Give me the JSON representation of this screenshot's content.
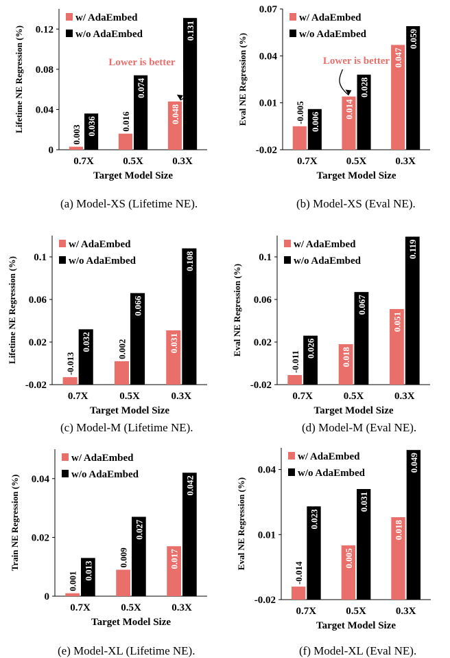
{
  "colors": {
    "with": "#e96f6a",
    "without": "#000000",
    "annotation": "#e96f6a"
  },
  "chart_data": [
    {
      "type": "bar",
      "caption": "(a)  Model-XS (Lifetime NE).",
      "xlabel": "Target Model Size",
      "ylabel": "Lifetime NE Regression (%)",
      "categories": [
        "0.7X",
        "0.5X",
        "0.3X"
      ],
      "ylim": [
        0,
        0.14
      ],
      "yticks": [
        "0",
        "0.04",
        "0.08",
        "0.12"
      ],
      "ytick_values": [
        0,
        0.04,
        0.08,
        0.12
      ],
      "legend": "top-left",
      "annotation": "Lower is better",
      "series": [
        {
          "name": "w/ AdaEmbed",
          "values": [
            0.003,
            0.016,
            0.048
          ],
          "labels": [
            "0.003",
            "0.016",
            "0.048"
          ]
        },
        {
          "name": "w/o AdaEmbed",
          "values": [
            0.036,
            0.074,
            0.131
          ],
          "labels": [
            "0.036",
            "0.074",
            "0.131"
          ]
        }
      ]
    },
    {
      "type": "bar",
      "caption": "(b)  Model-XS (Eval NE).",
      "xlabel": "Target Model Size",
      "ylabel": "Eval NE Regression (%)",
      "categories": [
        "0.7X",
        "0.5X",
        "0.3X"
      ],
      "ylim": [
        -0.02,
        0.07
      ],
      "yticks": [
        "-0.02",
        "0.01",
        "0.04",
        "0.07"
      ],
      "ytick_values": [
        -0.02,
        0.01,
        0.04,
        0.07
      ],
      "legend": "top-left",
      "annotation": "Lower is better",
      "series": [
        {
          "name": "w/ AdaEmbed",
          "values": [
            -0.005,
            0.014,
            0.047
          ],
          "labels": [
            "-0.005",
            "0.014",
            "0.047"
          ]
        },
        {
          "name": "w/o AdaEmbed",
          "values": [
            0.006,
            0.028,
            0.059
          ],
          "labels": [
            "0.006",
            "0.028",
            "0.059"
          ]
        }
      ]
    },
    {
      "type": "bar",
      "caption": "(c)  Model-M (Lifetime NE).",
      "xlabel": "Target Model Size",
      "ylabel": "Lifetime NE Regression (%)",
      "categories": [
        "0.7X",
        "0.5X",
        "0.3X"
      ],
      "ylim": [
        -0.02,
        0.12
      ],
      "yticks": [
        "-0.02",
        "0.02",
        "0.06",
        "0.1"
      ],
      "ytick_values": [
        -0.02,
        0.02,
        0.06,
        0.1
      ],
      "legend": "top-left",
      "series": [
        {
          "name": "w/ AdaEmbed",
          "values": [
            -0.013,
            0.002,
            0.031
          ],
          "labels": [
            "-0.013",
            "0.002",
            "0.031"
          ]
        },
        {
          "name": "w/o AdaEmbed",
          "values": [
            0.032,
            0.066,
            0.108
          ],
          "labels": [
            "0.032",
            "0.066",
            "0.108"
          ]
        }
      ]
    },
    {
      "type": "bar",
      "caption": "(d)  Model-M (Eval NE).",
      "xlabel": "Target Model Size",
      "ylabel": "Eval NE Regression (%)",
      "categories": [
        "0.7X",
        "0.5X",
        "0.3X"
      ],
      "ylim": [
        -0.02,
        0.12
      ],
      "yticks": [
        "-0.02",
        "0.02",
        "0.06",
        "0.1"
      ],
      "ytick_values": [
        -0.02,
        0.02,
        0.06,
        0.1
      ],
      "legend": "top-left",
      "series": [
        {
          "name": "w/ AdaEmbed",
          "values": [
            -0.011,
            0.018,
            0.051
          ],
          "labels": [
            "-0.011",
            "0.018",
            "0.051"
          ]
        },
        {
          "name": "w/o AdaEmbed",
          "values": [
            0.026,
            0.067,
            0.119
          ],
          "labels": [
            "0.026",
            "0.067",
            "0.119"
          ]
        }
      ]
    },
    {
      "type": "bar",
      "caption": "(e)  Model-XL (Lifetime NE).",
      "xlabel": "Target Model Size",
      "ylabel": "Train NE Regression (%)",
      "categories": [
        "0.7X",
        "0.5X",
        "0.3X"
      ],
      "ylim": [
        0,
        0.05
      ],
      "yticks": [
        "0",
        "0.02",
        "0.04"
      ],
      "ytick_values": [
        0,
        0.02,
        0.04
      ],
      "legend": "top-left",
      "series": [
        {
          "name": "w/ AdaEmbed",
          "values": [
            0.001,
            0.009,
            0.017
          ],
          "labels": [
            "0.001",
            "0.009",
            "0.017"
          ]
        },
        {
          "name": "w/o AdaEmbed",
          "values": [
            0.013,
            0.027,
            0.042
          ],
          "labels": [
            "0.013",
            "0.027",
            "0.042"
          ]
        }
      ]
    },
    {
      "type": "bar",
      "caption": "(f)  Model-XL (Eval NE).",
      "xlabel": "Target Model Size",
      "ylabel": "Eval NE Regression (%)",
      "categories": [
        "0.7X",
        "0.5X",
        "0.3X"
      ],
      "ylim": [
        -0.02,
        0.05
      ],
      "yticks": [
        "-0.02",
        "0.01",
        "0.04"
      ],
      "ytick_values": [
        -0.02,
        0.01,
        0.04
      ],
      "legend": "top-left",
      "series": [
        {
          "name": "w/ AdaEmbed",
          "values": [
            -0.014,
            0.005,
            0.018
          ],
          "labels": [
            "-0.014",
            "0.005",
            "0.018"
          ]
        },
        {
          "name": "w/o AdaEmbed",
          "values": [
            0.023,
            0.031,
            0.049
          ],
          "labels": [
            "0.023",
            "0.031",
            "0.049"
          ]
        }
      ]
    }
  ]
}
